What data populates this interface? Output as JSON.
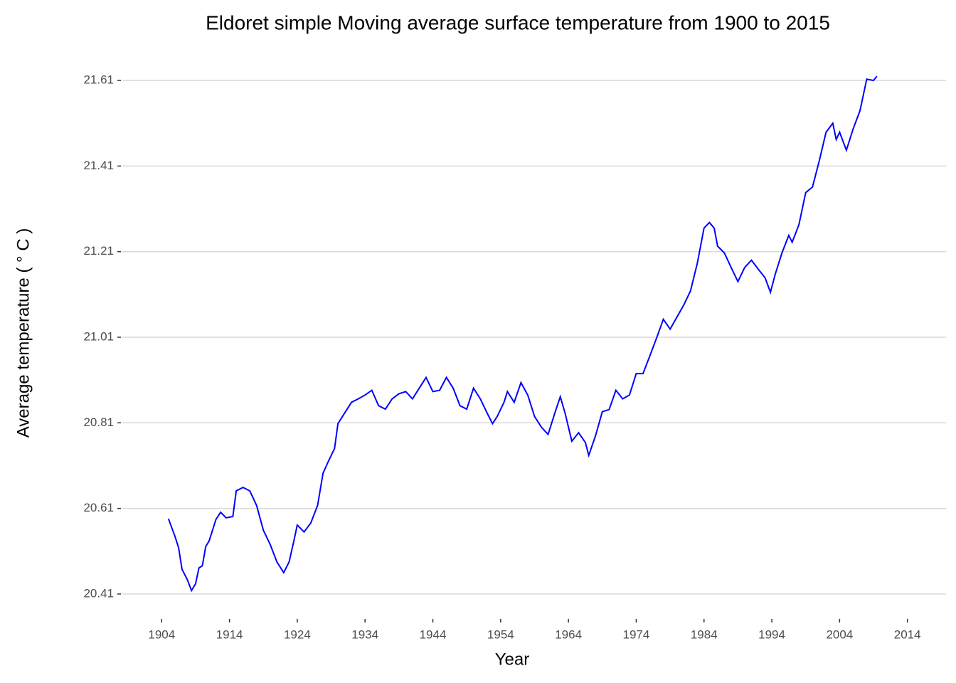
{
  "chart_data": {
    "type": "line",
    "title": "Eldoret simple Moving average surface temperature from 1900 to 2015",
    "x_label": "Year",
    "y_label": "Average temperature ( ° C )",
    "x": [
      1905.0,
      1906.0,
      1906.5,
      1907.0,
      1907.8,
      1908.4,
      1909.0,
      1909.5,
      1910.0,
      1910.5,
      1911.0,
      1912.0,
      1912.7,
      1913.5,
      1914.5,
      1915.0,
      1916.0,
      1917.0,
      1918.0,
      1919.0,
      1920.0,
      1921.0,
      1922.0,
      1922.8,
      1923.5,
      1924.0,
      1925.0,
      1926.0,
      1927.0,
      1927.8,
      1928.5,
      1929.5,
      1930.0,
      1931.0,
      1932.0,
      1933.0,
      1934.0,
      1935.0,
      1936.0,
      1937.0,
      1938.0,
      1939.0,
      1940.0,
      1941.0,
      1942.0,
      1943.0,
      1944.0,
      1945.0,
      1946.0,
      1947.0,
      1948.0,
      1949.0,
      1950.0,
      1951.0,
      1952.0,
      1952.8,
      1953.5,
      1954.5,
      1955.0,
      1956.0,
      1957.0,
      1958.0,
      1959.0,
      1960.0,
      1961.0,
      1962.0,
      1962.8,
      1963.5,
      1964.5,
      1965.5,
      1966.5,
      1967.0,
      1968.0,
      1969.0,
      1970.0,
      1971.0,
      1972.0,
      1973.0,
      1974.0,
      1975.0,
      1976.0,
      1977.0,
      1978.0,
      1979.0,
      1980.0,
      1981.0,
      1982.0,
      1983.0,
      1984.0,
      1984.8,
      1985.5,
      1986.0,
      1987.0,
      1988.0,
      1989.0,
      1990.0,
      1991.0,
      1992.0,
      1993.0,
      1993.8,
      1994.5,
      1995.5,
      1996.5,
      1997.0,
      1998.0,
      1999.0,
      2000.0,
      2001.0,
      2002.0,
      2003.0,
      2003.5,
      2004.0,
      2005.0,
      2006.0,
      2007.0,
      2008.0,
      2009.0,
      2009.5
    ],
    "series": [
      {
        "name": "Moving average",
        "color": "#0000ff",
        "values": [
          20.586,
          20.543,
          20.518,
          20.468,
          20.443,
          20.418,
          20.434,
          20.471,
          20.476,
          20.521,
          20.534,
          20.584,
          20.601,
          20.588,
          20.591,
          20.651,
          20.659,
          20.651,
          20.617,
          20.559,
          20.526,
          20.485,
          20.46,
          20.485,
          20.534,
          20.571,
          20.555,
          20.576,
          20.617,
          20.692,
          20.717,
          20.75,
          20.808,
          20.833,
          20.858,
          20.866,
          20.875,
          20.886,
          20.85,
          20.842,
          20.866,
          20.878,
          20.883,
          20.866,
          20.891,
          20.916,
          20.883,
          20.886,
          20.916,
          20.891,
          20.85,
          20.842,
          20.891,
          20.866,
          20.833,
          20.808,
          20.825,
          20.858,
          20.883,
          20.858,
          20.904,
          20.875,
          20.825,
          20.8,
          20.783,
          20.833,
          20.871,
          20.833,
          20.767,
          20.787,
          20.764,
          20.734,
          20.78,
          20.836,
          20.841,
          20.886,
          20.866,
          20.875,
          20.925,
          20.925,
          20.966,
          21.008,
          21.052,
          21.029,
          21.057,
          21.085,
          21.118,
          21.182,
          21.265,
          21.278,
          21.265,
          21.223,
          21.207,
          21.173,
          21.14,
          21.173,
          21.19,
          21.169,
          21.149,
          21.115,
          21.157,
          21.207,
          21.248,
          21.232,
          21.273,
          21.348,
          21.361,
          21.422,
          21.489,
          21.51,
          21.472,
          21.489,
          21.447,
          21.497,
          21.539,
          21.613,
          21.61,
          21.62
        ]
      }
    ],
    "xlim": [
      1898.2,
      2019.7
    ],
    "ylim": [
      20.355,
      21.665
    ],
    "xticks": [
      1904,
      1914,
      1924,
      1934,
      1944,
      1954,
      1964,
      1974,
      1984,
      1994,
      2004,
      2014
    ],
    "yticks": [
      20.41,
      20.61,
      20.81,
      21.01,
      21.21,
      21.41,
      21.61
    ],
    "grid": true
  }
}
